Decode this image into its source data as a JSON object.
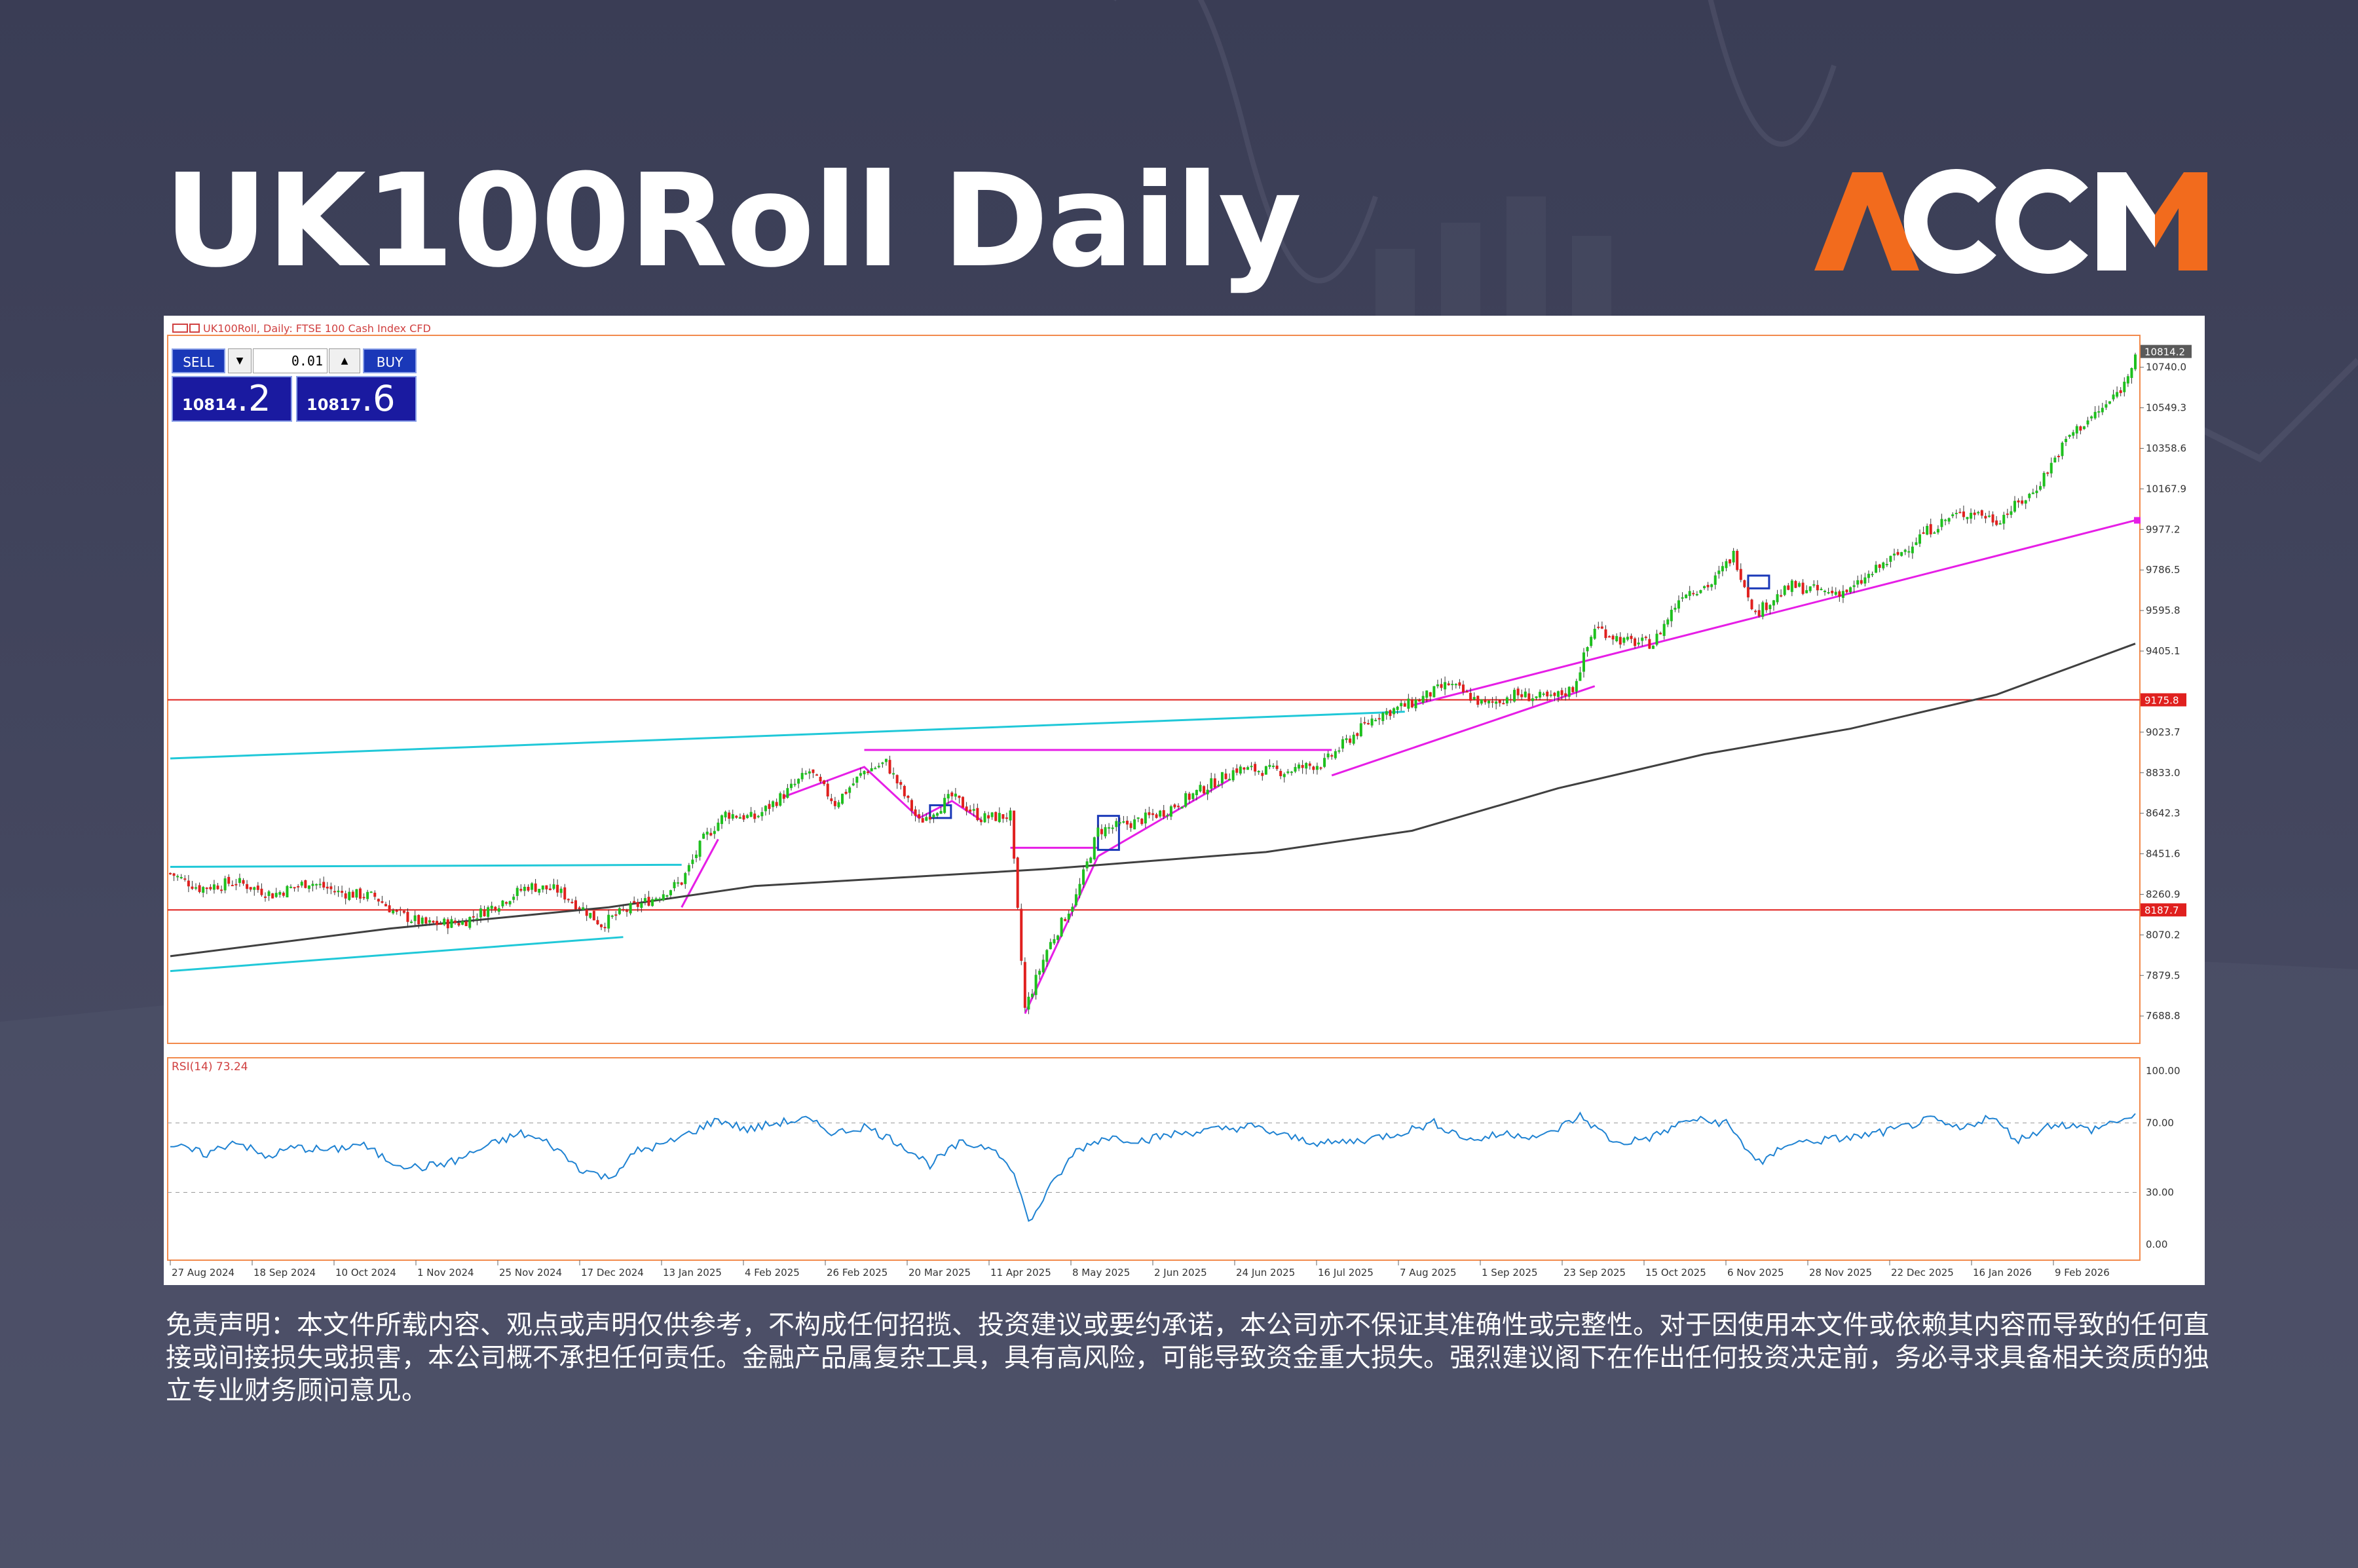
{
  "title": "UK100Roll Daily",
  "logo_text": "ACCM",
  "colors": {
    "background": "#3e4159",
    "logo_orange": "#f26b1d",
    "bull": "#1ec01e",
    "bear": "#e0201e",
    "magenta": "#e61ee6",
    "cyan": "#20c8d8",
    "level_red": "#e0201e",
    "ma": "#404040",
    "rsi": "#1e82d2",
    "blue_box": "#1a38b8"
  },
  "chart_header": "UK100Roll, Daily:  FTSE 100 Cash Index CFD",
  "trade_panel": {
    "sell_label": "SELL",
    "buy_label": "BUY",
    "volume": "0.01",
    "bid_main": "10814",
    "bid_last": ".2",
    "ask_main": "10817",
    "ask_last": ".6"
  },
  "indicator_label": "RSI(14) 73.24",
  "disclaimer": "免责声明：本文件所载内容、观点或声明仅供参考，不构成任何招揽、投资建议或要约承诺，本公司亦不保证其准确性或完整性。对于因使用本文件或依赖其内容而导致的任何直接或间接损失或损害，本公司概不承担任何责任。金融产品属复杂工具，具有高风险，可能导致资金重大损失。强烈建议阁下在作出任何投资决定前，务必寻求具备相关资质的独立专业财务顾问意见。",
  "chart_data": {
    "type": "candlestick",
    "symbol": "UK100Roll",
    "timeframe": "Daily",
    "y_ticks": [
      "10740.0",
      "10549.3",
      "10358.6",
      "10167.9",
      "9977.2",
      "9786.5",
      "9595.8",
      "9405.1",
      "9023.7",
      "8833.0",
      "8642.3",
      "8451.6",
      "8260.9",
      "8070.2",
      "7879.5",
      "7688.8"
    ],
    "ylim": [
      7560,
      10890
    ],
    "x_ticks": [
      "27 Aug 2024",
      "18 Sep 2024",
      "10 Oct 2024",
      "1 Nov 2024",
      "25 Nov 2024",
      "17 Dec 2024",
      "13 Jan 2025",
      "4 Feb 2025",
      "26 Feb 2025",
      "20 Mar 2025",
      "11 Apr 2025",
      "8 May 2025",
      "2 Jun 2025",
      "24 Jun 2025",
      "16 Jul 2025",
      "7 Aug 2025",
      "1 Sep 2025",
      "23 Sep 2025",
      "15 Oct 2025",
      "6 Nov 2025",
      "28 Nov 2025",
      "22 Dec 2025",
      "16 Jan 2026",
      "9 Feb 2026"
    ],
    "price_labels": {
      "current": "10814.2",
      "resistance": "9175.8",
      "support": "8187.7"
    },
    "horizontal_levels": [
      9175.8,
      8187.7
    ],
    "close_path": [
      [
        0,
        8360
      ],
      [
        8,
        8290
      ],
      [
        18,
        8320
      ],
      [
        28,
        8260
      ],
      [
        38,
        8320
      ],
      [
        46,
        8270
      ],
      [
        56,
        8250
      ],
      [
        62,
        8170
      ],
      [
        70,
        8120
      ],
      [
        80,
        8130
      ],
      [
        90,
        8220
      ],
      [
        98,
        8300
      ],
      [
        106,
        8280
      ],
      [
        114,
        8180
      ],
      [
        118,
        8120
      ],
      [
        124,
        8180
      ],
      [
        132,
        8240
      ],
      [
        138,
        8300
      ],
      [
        140,
        8320
      ],
      [
        146,
        8520
      ],
      [
        152,
        8640
      ],
      [
        160,
        8620
      ],
      [
        168,
        8730
      ],
      [
        175,
        8840
      ],
      [
        182,
        8690
      ],
      [
        190,
        8840
      ],
      [
        196,
        8880
      ],
      [
        205,
        8600
      ],
      [
        214,
        8720
      ],
      [
        222,
        8620
      ],
      [
        230,
        8630
      ],
      [
        234,
        7720
      ],
      [
        240,
        8000
      ],
      [
        248,
        8250
      ],
      [
        254,
        8560
      ],
      [
        264,
        8600
      ],
      [
        272,
        8650
      ],
      [
        282,
        8750
      ],
      [
        292,
        8850
      ],
      [
        305,
        8840
      ],
      [
        316,
        8880
      ],
      [
        322,
        8980
      ],
      [
        330,
        9100
      ],
      [
        340,
        9160
      ],
      [
        350,
        9250
      ],
      [
        360,
        9150
      ],
      [
        368,
        9200
      ],
      [
        378,
        9180
      ],
      [
        384,
        9230
      ],
      [
        390,
        9520
      ],
      [
        398,
        9450
      ],
      [
        406,
        9440
      ],
      [
        414,
        9680
      ],
      [
        422,
        9720
      ],
      [
        428,
        9860
      ],
      [
        434,
        9580
      ],
      [
        438,
        9640
      ],
      [
        444,
        9710
      ],
      [
        454,
        9680
      ],
      [
        460,
        9690
      ],
      [
        468,
        9800
      ],
      [
        474,
        9870
      ],
      [
        480,
        9960
      ],
      [
        488,
        10040
      ],
      [
        494,
        10060
      ],
      [
        500,
        10020
      ],
      [
        510,
        10150
      ],
      [
        520,
        10420
      ],
      [
        530,
        10560
      ],
      [
        535,
        10660
      ],
      [
        538,
        10814
      ]
    ],
    "sma_path": [
      [
        0,
        7970
      ],
      [
        60,
        8100
      ],
      [
        120,
        8200
      ],
      [
        160,
        8300
      ],
      [
        200,
        8340
      ],
      [
        240,
        8380
      ],
      [
        300,
        8460
      ],
      [
        340,
        8560
      ],
      [
        380,
        8760
      ],
      [
        420,
        8920
      ],
      [
        460,
        9040
      ],
      [
        500,
        9200
      ],
      [
        538,
        9440
      ]
    ],
    "rsi": {
      "name": "RSI(14)",
      "last": 73.24,
      "levels": [
        70,
        30
      ],
      "ylim": [
        0,
        100
      ],
      "ticks": [
        "100.00",
        "70.00",
        "30.00",
        "0.00"
      ],
      "path": [
        [
          0,
          57
        ],
        [
          10,
          52
        ],
        [
          18,
          60
        ],
        [
          26,
          50
        ],
        [
          34,
          56
        ],
        [
          44,
          54
        ],
        [
          52,
          58
        ],
        [
          60,
          48
        ],
        [
          68,
          44
        ],
        [
          78,
          48
        ],
        [
          86,
          56
        ],
        [
          96,
          64
        ],
        [
          104,
          58
        ],
        [
          112,
          44
        ],
        [
          120,
          38
        ],
        [
          128,
          54
        ],
        [
          136,
          58
        ],
        [
          142,
          64
        ],
        [
          150,
          72
        ],
        [
          158,
          66
        ],
        [
          166,
          70
        ],
        [
          174,
          72
        ],
        [
          182,
          64
        ],
        [
          190,
          68
        ],
        [
          200,
          58
        ],
        [
          208,
          46
        ],
        [
          216,
          58
        ],
        [
          226,
          56
        ],
        [
          232,
          36
        ],
        [
          235,
          12
        ],
        [
          240,
          30
        ],
        [
          248,
          54
        ],
        [
          256,
          62
        ],
        [
          266,
          60
        ],
        [
          276,
          64
        ],
        [
          286,
          66
        ],
        [
          296,
          68
        ],
        [
          306,
          62
        ],
        [
          316,
          58
        ],
        [
          326,
          60
        ],
        [
          336,
          64
        ],
        [
          346,
          70
        ],
        [
          356,
          60
        ],
        [
          366,
          64
        ],
        [
          376,
          62
        ],
        [
          386,
          74
        ],
        [
          396,
          58
        ],
        [
          406,
          62
        ],
        [
          416,
          72
        ],
        [
          426,
          70
        ],
        [
          432,
          54
        ],
        [
          436,
          46
        ],
        [
          442,
          58
        ],
        [
          452,
          60
        ],
        [
          462,
          62
        ],
        [
          472,
          66
        ],
        [
          482,
          72
        ],
        [
          490,
          66
        ],
        [
          498,
          74
        ],
        [
          506,
          60
        ],
        [
          516,
          70
        ],
        [
          526,
          66
        ],
        [
          534,
          72
        ],
        [
          538,
          73
        ]
      ]
    }
  }
}
